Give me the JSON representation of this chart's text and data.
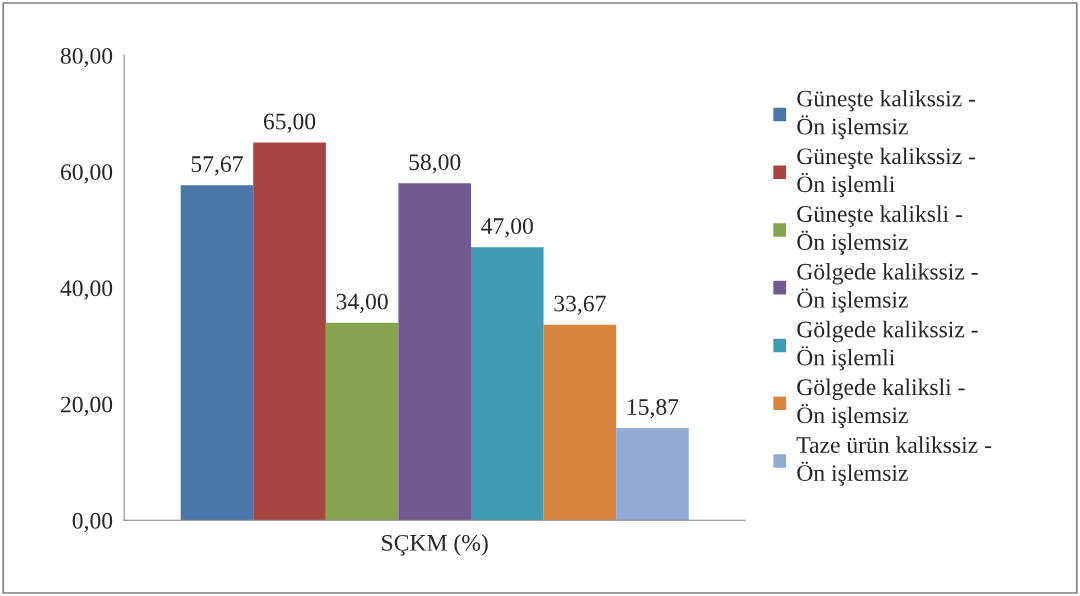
{
  "chart_data": {
    "type": "bar",
    "categories": [
      "SÇKM (%)"
    ],
    "series": [
      {
        "name": "Güneşte kalikssiz -\nÖn işlemsiz",
        "color": "#4a76a8",
        "values": [
          57.67
        ],
        "value_labels": [
          "57,67"
        ]
      },
      {
        "name": "Güneşte kalikssiz -\nÖn işlemli",
        "color": "#a84442",
        "values": [
          65.0
        ],
        "value_labels": [
          "65,00"
        ]
      },
      {
        "name": "Güneşte kaliksli -\nÖn işlemsiz",
        "color": "#87a34f",
        "values": [
          34.0
        ],
        "value_labels": [
          "34,00"
        ]
      },
      {
        "name": "Gölgede kalikssiz -\nÖn işlemsiz",
        "color": "#6f5a91",
        "values": [
          58.0
        ],
        "value_labels": [
          "58,00"
        ]
      },
      {
        "name": "Gölgede kalikssiz -\nÖn işlemli",
        "color": "#3e9bb0",
        "values": [
          47.0
        ],
        "value_labels": [
          "47,00"
        ]
      },
      {
        "name": "Gölgede kaliksli -\nÖn işlemsiz",
        "color": "#d9843e",
        "values": [
          33.67
        ],
        "value_labels": [
          "33,67"
        ]
      },
      {
        "name": "Taze ürün kalikssiz -\nÖn işlemsiz",
        "color": "#93aad4",
        "values": [
          15.87
        ],
        "value_labels": [
          "15,87"
        ]
      }
    ],
    "ylim": [
      0,
      80
    ],
    "yticks": [
      {
        "value": 0,
        "label": "0,00"
      },
      {
        "value": 20,
        "label": "20,00"
      },
      {
        "value": 40,
        "label": "40,00"
      },
      {
        "value": 60,
        "label": "60,00"
      },
      {
        "value": 80,
        "label": "80,00"
      }
    ],
    "grid": false,
    "legend": "right"
  }
}
